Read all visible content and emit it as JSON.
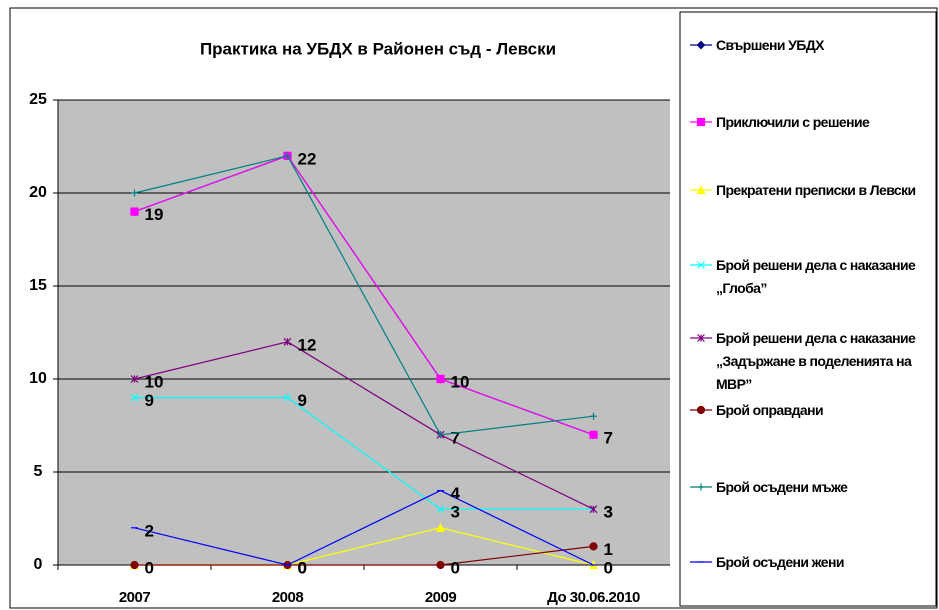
{
  "chart_data": {
    "type": "line",
    "title": "Практика на УБДХ в Районен съд - Левски",
    "categories": [
      "2007",
      "2008",
      "2009",
      "До 30.06.2010"
    ],
    "ylim": [
      0,
      25
    ],
    "yticks": [
      0,
      5,
      10,
      15,
      20,
      25
    ],
    "grid": true,
    "series": [
      {
        "name": "Свършени УБДХ",
        "color": "#000080",
        "marker": "diamond",
        "values": [
          19,
          22,
          10,
          7
        ],
        "data_labels": false
      },
      {
        "name": "Приключили с решение",
        "color": "#ff00ff",
        "marker": "square",
        "values": [
          19,
          22,
          10,
          7
        ],
        "data_labels": true
      },
      {
        "name": "Прекратени преписки в Левски",
        "color": "#ffff00",
        "marker": "triangle",
        "values": [
          0,
          0,
          2,
          0
        ],
        "data_labels": false
      },
      {
        "name": "Брой решени дела с наказание „Глоба”",
        "color": "#00ffff",
        "marker": "x",
        "values": [
          9,
          9,
          3,
          3
        ],
        "data_labels": true
      },
      {
        "name": "Брой решени дела с наказание „Задържане в поделенията на МВР”",
        "color": "#800080",
        "marker": "star",
        "values": [
          10,
          12,
          7,
          3
        ],
        "data_labels": true
      },
      {
        "name": "Брой оправдани",
        "color": "#800000",
        "marker": "circle",
        "values": [
          0,
          0,
          0,
          1
        ],
        "data_labels": true
      },
      {
        "name": "Брой осъдени мъже",
        "color": "#008080",
        "marker": "plus",
        "values": [
          20,
          22,
          7,
          8
        ],
        "data_labels": false
      },
      {
        "name": "Брой осъдени жени",
        "color": "#0000ff",
        "marker": "dash",
        "values": [
          2,
          0,
          4,
          0
        ],
        "data_labels": true
      }
    ]
  }
}
